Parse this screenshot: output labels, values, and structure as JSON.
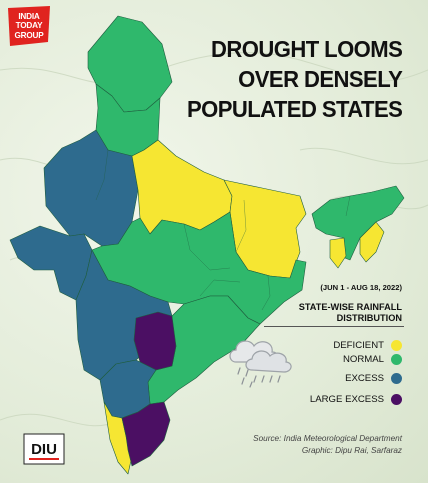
{
  "header": {
    "logo_line1": "INDIA",
    "logo_line2": "TODAY",
    "logo_line3": "GROUP",
    "title_lines": [
      "DROUGHT LOOMS",
      "OVER DENSELY",
      "POPULATED STATES"
    ]
  },
  "period": "(JUN 1 - AUG 18, 2022)",
  "legend": {
    "title_line1": "STATE-WISE RAINFALL",
    "title_line2": "DISTRIBUTION",
    "items": [
      {
        "label": "DEFICIENT",
        "color": "#f6e632"
      },
      {
        "label": "NORMAL",
        "color": "#2fb86c"
      },
      {
        "label": "EXCESS",
        "color": "#2e6b8e"
      },
      {
        "label": "LARGE EXCESS",
        "color": "#4b0f63"
      }
    ]
  },
  "map": {
    "regions": [
      {
        "name": "north",
        "category": "NORMAL"
      },
      {
        "name": "punjab-haryana",
        "category": "NORMAL"
      },
      {
        "name": "rajasthan-west",
        "category": "EXCESS"
      },
      {
        "name": "gujarat",
        "category": "EXCESS"
      },
      {
        "name": "uttar-pradesh",
        "category": "DEFICIENT"
      },
      {
        "name": "bihar-jharkhand",
        "category": "DEFICIENT"
      },
      {
        "name": "central",
        "category": "NORMAL"
      },
      {
        "name": "maharashtra",
        "category": "EXCESS"
      },
      {
        "name": "east-coast",
        "category": "NORMAL"
      },
      {
        "name": "telangana",
        "category": "LARGE EXCESS"
      },
      {
        "name": "karnataka",
        "category": "EXCESS"
      },
      {
        "name": "tamil-nadu",
        "category": "LARGE EXCESS"
      },
      {
        "name": "kerala",
        "category": "DEFICIENT"
      },
      {
        "name": "northeast",
        "category": "NORMAL"
      },
      {
        "name": "manipur-mizoram",
        "category": "DEFICIENT"
      }
    ]
  },
  "source": {
    "line1": "Source: India Meteorological Department",
    "line2": "Graphic: Dipu Rai, Sarfaraz"
  },
  "watermark": "DIU"
}
